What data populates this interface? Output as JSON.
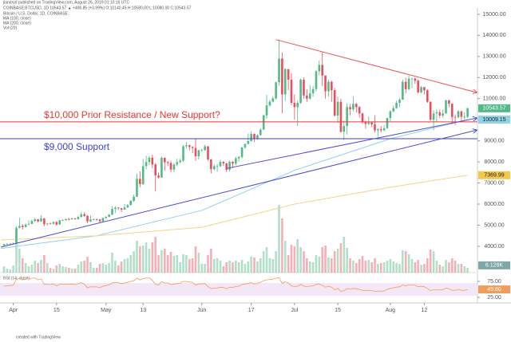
{
  "chart_data": {
    "type": "candlestick",
    "header": "jlandryd published on TradingView.com, August 26, 2019 01:10:16 UTC",
    "symbol_line": "COINBASE:BTCUSD, 1D 10543.57 ▲ +406.85 (+3.99%) O:10140.45 H:10580.00 L:10080.00 C:10543.57",
    "legend": [
      "Bitcoin / U.S. Dollar, 1D, COINBASE",
      "MA (100, close)",
      "MA (200, close)",
      "Vol (20)"
    ],
    "footer": "created with TradingView",
    "up_color": "#53b987",
    "down_color": "#eb4d5c",
    "xlim": [
      -1.3,
      153.2
    ],
    "xticks": [
      {
        "value": 3,
        "label": "Apr"
      },
      {
        "value": 17,
        "label": "15"
      },
      {
        "value": 33,
        "label": "May"
      },
      {
        "value": 45,
        "label": "13"
      },
      {
        "value": 64,
        "label": "Jun"
      },
      {
        "value": 80,
        "label": "17"
      },
      {
        "value": 94,
        "label": "Jul"
      },
      {
        "value": 108,
        "label": "15"
      },
      {
        "value": 125,
        "label": "Aug"
      },
      {
        "value": 136,
        "label": "12"
      }
    ],
    "ylim": [
      2750,
      15300
    ],
    "yticks": [
      {
        "value": 4000,
        "label": "4000.00"
      },
      {
        "value": 5000,
        "label": "5000.00"
      },
      {
        "value": 6000,
        "label": "6000.00"
      },
      {
        "value": 7000,
        "label": "7000.00"
      },
      {
        "value": 8000,
        "label": "8000.00"
      },
      {
        "value": 9000,
        "label": "9000.00"
      },
      {
        "value": 10000,
        "label": "10000.00"
      },
      {
        "value": 11000,
        "label": "11000.00"
      },
      {
        "value": 12000,
        "label": "12000.00"
      },
      {
        "value": 13000,
        "label": "13000.00"
      },
      {
        "value": 14000,
        "label": "14000.00"
      },
      {
        "value": 15000,
        "label": "15000.00"
      }
    ],
    "first_open": 4030,
    "close": [
      4100,
      4110,
      4120,
      4150,
      4880,
      4970,
      4910,
      5030,
      5060,
      5200,
      5280,
      5180,
      5320,
      5050,
      5080,
      5070,
      5150,
      5030,
      5230,
      5240,
      5290,
      5280,
      5320,
      5290,
      5390,
      5520,
      5440,
      5180,
      5270,
      5280,
      5270,
      5180,
      5340,
      5400,
      5500,
      5770,
      5830,
      5800,
      5740,
      5840,
      5950,
      6150,
      6350,
      7200,
      6950,
      7800,
      7990,
      8200,
      7880,
      7360,
      7260,
      8200,
      7990,
      7950,
      7640,
      7880,
      7990,
      8060,
      8740,
      8790,
      8710,
      8660,
      8270,
      8550,
      8560,
      8740,
      8120,
      7660,
      7800,
      7800,
      8000,
      7930,
      7630,
      8010,
      7920,
      8170,
      8230,
      8690,
      8850,
      8990,
      9330,
      9080,
      9270,
      9530,
      10210,
      10680,
      10860,
      11010,
      11780,
      12900,
      11200,
      12400,
      11900,
      10800,
      10600,
      10800,
      11900,
      11150,
      11000,
      11250,
      11450,
      12300,
      12600,
      12100,
      11350,
      11800,
      11400,
      10200,
      10850,
      9430,
      9700,
      10600,
      10500,
      10750,
      10600,
      10300,
      9900,
      9800,
      9870,
      9780,
      9500,
      9550,
      9500,
      9600,
      10080,
      10400,
      10550,
      10800,
      10950,
      11800,
      11450,
      11950,
      11950,
      11850,
      11300,
      11550,
      11400,
      10850,
      10000,
      10300,
      10350,
      10200,
      10300,
      10920,
      10760,
      10130,
      10120,
      10400,
      10140,
      10140,
      10543.57
    ],
    "high": [
      4120,
      4150,
      4140,
      4170,
      4950,
      5350,
      5050,
      5080,
      5220,
      5250,
      5350,
      5290,
      5470,
      5340,
      5100,
      5120,
      5180,
      5200,
      5250,
      5280,
      5320,
      5350,
      5350,
      5330,
      5440,
      5620,
      5630,
      5480,
      5450,
      5320,
      5320,
      5290,
      5360,
      5420,
      5520,
      5900,
      5900,
      5850,
      5820,
      6000,
      6000,
      6200,
      6450,
      7450,
      7550,
      8150,
      8300,
      8280,
      8350,
      7950,
      7500,
      8250,
      8200,
      8050,
      8050,
      7950,
      8150,
      8160,
      8800,
      8950,
      8820,
      8740,
      9090,
      8590,
      8620,
      8800,
      8750,
      8130,
      7890,
      7890,
      8100,
      8040,
      7950,
      8060,
      8030,
      8250,
      8300,
      8700,
      8880,
      9350,
      9450,
      9350,
      9300,
      9600,
      10250,
      11180,
      10930,
      11120,
      11800,
      13800,
      13200,
      12450,
      12400,
      12200,
      11200,
      10900,
      11950,
      12000,
      11450,
      11650,
      11600,
      12350,
      12800,
      13200,
      12100,
      11900,
      11850,
      11500,
      11100,
      11000,
      9970,
      10780,
      10750,
      11100,
      10800,
      10650,
      10330,
      9950,
      10160,
      9900,
      10200,
      9600,
      9700,
      9750,
      10100,
      10450,
      10680,
      10900,
      11050,
      11900,
      12000,
      12100,
      11990,
      12000,
      11900,
      11600,
      11550,
      11450,
      10880,
      10450,
      10500,
      10480,
      10480,
      10950,
      10950,
      10780,
      10250,
      10450,
      10420,
      10350,
      10580
    ],
    "low": [
      4020,
      4060,
      4090,
      4100,
      4140,
      4850,
      4800,
      4900,
      5000,
      5050,
      5150,
      5140,
      5160,
      4950,
      4990,
      5040,
      5030,
      4980,
      5020,
      5200,
      5220,
      5230,
      5260,
      5250,
      5260,
      5380,
      5400,
      5100,
      5140,
      5230,
      5220,
      5140,
      5160,
      5320,
      5370,
      5480,
      5580,
      5720,
      5620,
      5730,
      5820,
      5940,
      6100,
      6330,
      6800,
      6900,
      7650,
      7850,
      7700,
      6600,
      7200,
      7250,
      7580,
      7800,
      7520,
      7520,
      7800,
      7950,
      8000,
      8620,
      8550,
      8420,
      8050,
      8110,
      8480,
      8530,
      8060,
      7460,
      7600,
      7530,
      7750,
      7810,
      7520,
      7540,
      7700,
      7850,
      8010,
      8170,
      8620,
      8820,
      8980,
      8950,
      9050,
      9250,
      9520,
      10050,
      10620,
      10820,
      10960,
      11620,
      10300,
      10900,
      11400,
      10700,
      10000,
      9700,
      10750,
      11000,
      10850,
      10950,
      11100,
      11350,
      12100,
      11600,
      11000,
      11100,
      10850,
      10150,
      9850,
      9400,
      9050,
      9300,
      10200,
      10400,
      10350,
      10100,
      9800,
      9570,
      9750,
      9660,
      9400,
      9200,
      9400,
      9450,
      9580,
      9920,
      10350,
      10520,
      10600,
      10950,
      11250,
      11400,
      11500,
      11700,
      11250,
      11250,
      11200,
      10800,
      9950,
      9500,
      9900,
      10080,
      10100,
      10280,
      10600,
      9800,
      9750,
      10060,
      9950,
      10000,
      10080
    ],
    "vollim": [
      0,
      110000
    ],
    "volume": [
      8000,
      5000,
      4000,
      9000,
      52000,
      30000,
      18000,
      12000,
      8000,
      10000,
      15000,
      12000,
      16000,
      22000,
      12000,
      6000,
      5000,
      9000,
      11000,
      8000,
      7000,
      6000,
      5000,
      5000,
      10000,
      14000,
      15000,
      20000,
      13000,
      6000,
      6000,
      11000,
      12000,
      10000,
      12000,
      25000,
      15000,
      9000,
      14000,
      17000,
      18000,
      22000,
      27000,
      40000,
      33000,
      34000,
      38000,
      30000,
      38000,
      45000,
      22000,
      28000,
      30000,
      22000,
      26000,
      21000,
      22000,
      13000,
      23000,
      22000,
      17000,
      18000,
      33000,
      25000,
      11000,
      11000,
      22000,
      30000,
      17000,
      18000,
      15000,
      8000,
      13000,
      15000,
      13000,
      15000,
      13000,
      16000,
      11000,
      14000,
      20000,
      19000,
      14000,
      18000,
      27000,
      32000,
      18000,
      17000,
      27000,
      85000,
      68000,
      40000,
      22000,
      35000,
      33000,
      42000,
      32000,
      27000,
      18000,
      14000,
      13000,
      22000,
      20000,
      32000,
      34000,
      19000,
      18000,
      27000,
      30000,
      37000,
      45000,
      31000,
      18000,
      15000,
      12000,
      17000,
      21000,
      15000,
      16000,
      13000,
      18000,
      11000,
      12000,
      13000,
      15000,
      17000,
      14000,
      12000,
      11000,
      28000,
      27000,
      23000,
      17000,
      13000,
      16000,
      10000,
      11000,
      18000,
      29000,
      27000,
      15000,
      10000,
      8000,
      16000,
      13000,
      18000,
      15000,
      11000,
      11000,
      8000,
      6128
    ],
    "volume_badge": {
      "value": 6128,
      "label": "6.128K"
    },
    "ma": [
      {
        "color": "#8fd3e8",
        "x": [
          -1,
          30,
          64,
          94,
          125,
          150
        ],
        "values": [
          3900,
          4500,
          5700,
          7600,
          9100,
          10009.15
        ]
      },
      {
        "color": "#f2d58c",
        "x": [
          -1,
          30,
          64,
          94,
          125,
          150
        ],
        "values": [
          4300,
          4500,
          4900,
          6000,
          6800,
          7369.99
        ]
      }
    ],
    "price_badges": [
      {
        "value": 10543.57,
        "label": "10543.57",
        "color": "#53b987"
      },
      {
        "value": 10009.15,
        "label": "10009.15",
        "color": "#8fd3e8"
      },
      {
        "value": 7369.99,
        "label": "7369.99",
        "color": "#f2c94c"
      }
    ],
    "hlines": [
      {
        "value": 9900,
        "color": "#e53935",
        "text": "$10,000 Prior Resistance / New Support?"
      },
      {
        "value": 9100,
        "color": "#3f3fd0",
        "text": "$9,000 Support"
      }
    ],
    "trendlines": [
      {
        "color": "#ef5350",
        "x": [
          88,
          153
        ],
        "values": [
          13800,
          11290
        ]
      },
      {
        "color": "#4a4ad6",
        "x": [
          72,
          153
        ],
        "values": [
          7690,
          10080
        ]
      },
      {
        "color": "#4a4ad6",
        "x": [
          -1,
          153
        ],
        "values": [
          3960,
          9510
        ]
      }
    ],
    "rsi_title": "RSI (14, close)",
    "rsi_color": "#f39c5a",
    "rsi_lim": [
      10,
      100
    ],
    "rsi_band": [
      30,
      70
    ],
    "rsi_ticks": [
      {
        "value": 25,
        "label": "25.00"
      },
      {
        "value": 75,
        "label": "75.00"
      }
    ],
    "rsi": [
      60,
      61,
      62,
      63,
      82,
      84,
      80,
      82,
      83,
      85,
      86,
      80,
      83,
      66,
      66,
      65,
      67,
      61,
      66,
      66,
      67,
      66,
      67,
      65,
      68,
      71,
      66,
      55,
      58,
      58,
      58,
      55,
      60,
      62,
      64,
      70,
      72,
      71,
      68,
      70,
      72,
      75,
      77,
      85,
      80,
      84,
      85,
      86,
      78,
      66,
      64,
      74,
      70,
      70,
      65,
      67,
      68,
      69,
      75,
      75,
      73,
      72,
      64,
      67,
      67,
      69,
      59,
      52,
      54,
      54,
      57,
      56,
      52,
      57,
      56,
      59,
      60,
      65,
      67,
      68,
      71,
      67,
      69,
      72,
      77,
      80,
      81,
      82,
      85,
      87,
      68,
      74,
      70,
      61,
      59,
      60,
      66,
      60,
      59,
      60,
      61,
      66,
      67,
      63,
      57,
      60,
      57,
      49,
      53,
      44,
      46,
      52,
      51,
      53,
      52,
      50,
      47,
      46,
      47,
      46,
      44,
      45,
      44,
      45,
      50,
      53,
      55,
      57,
      58,
      64,
      61,
      64,
      64,
      63,
      58,
      60,
      58,
      53,
      46,
      49,
      49,
      48,
      49,
      54,
      52,
      47,
      47,
      50,
      47,
      47,
      49.8
    ],
    "rsi_badge": {
      "value": 49.8,
      "label": "49.80"
    }
  }
}
